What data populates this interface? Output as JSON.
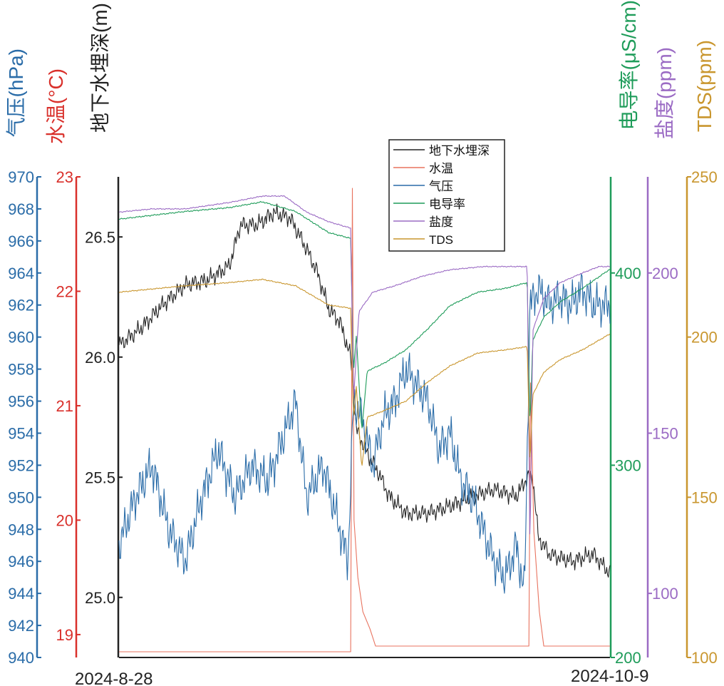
{
  "chart_data": {
    "type": "line",
    "x_start_label": "2024-8-28",
    "x_end_label": "2024-10-9",
    "axes": [
      {
        "id": "pressure",
        "label": "气压(hPa)",
        "color": "#2a6ca8",
        "side": "left",
        "range": [
          940,
          970
        ],
        "ticks": [
          940,
          942,
          944,
          946,
          948,
          950,
          952,
          954,
          956,
          958,
          960,
          962,
          964,
          966,
          968,
          970
        ]
      },
      {
        "id": "temp",
        "label": "水温(°C)",
        "color": "#d9302b",
        "side": "left",
        "range": [
          18.8,
          23
        ],
        "ticks": [
          19,
          20,
          21,
          22,
          23
        ]
      },
      {
        "id": "depth",
        "label": "地下水埋深(m)",
        "color": "#222222",
        "side": "left",
        "range": [
          24.75,
          26.75
        ],
        "ticks": [
          "25.0",
          "25.5",
          "26.0",
          "26.5"
        ]
      },
      {
        "id": "ec",
        "label": "电导率(μS/cm)",
        "color": "#1f9c5a",
        "side": "right",
        "range": [
          200,
          450
        ],
        "ticks": [
          200,
          300,
          400
        ]
      },
      {
        "id": "salinity",
        "label": "盐度(ppm)",
        "color": "#9b6bc4",
        "side": "right",
        "range": [
          80,
          230
        ],
        "ticks": [
          100,
          150,
          200
        ]
      },
      {
        "id": "tds",
        "label": "TDS(ppm)",
        "color": "#c9962e",
        "side": "right",
        "range": [
          100,
          250
        ],
        "ticks": [
          100,
          150,
          200,
          250
        ]
      }
    ],
    "legend": {
      "placement": "top-center",
      "entries": [
        "地下水埋深",
        "水温",
        "气压",
        "电导率",
        "盐度",
        "TDS"
      ]
    },
    "series": [
      {
        "name": "地下水埋深",
        "axis": "depth",
        "color": "#222222",
        "values": [
          [
            0,
            26.05
          ],
          [
            4,
            26.12
          ],
          [
            8,
            26.22
          ],
          [
            12,
            26.3
          ],
          [
            16,
            26.32
          ],
          [
            20,
            26.38
          ],
          [
            22,
            26.55
          ],
          [
            25,
            26.55
          ],
          [
            28,
            26.6
          ],
          [
            31,
            26.58
          ],
          [
            34,
            26.45
          ],
          [
            36,
            26.35
          ],
          [
            38,
            26.2
          ],
          [
            40,
            26.15
          ],
          [
            42,
            26.0
          ],
          [
            43,
            25.7
          ],
          [
            45,
            25.6
          ],
          [
            47,
            25.52
          ],
          [
            49,
            25.42
          ],
          [
            52,
            25.35
          ],
          [
            56,
            25.35
          ],
          [
            60,
            25.38
          ],
          [
            64,
            25.42
          ],
          [
            68,
            25.45
          ],
          [
            72,
            25.42
          ],
          [
            74,
            25.5
          ],
          [
            75,
            25.5
          ],
          [
            76,
            25.25
          ],
          [
            78,
            25.18
          ],
          [
            82,
            25.15
          ],
          [
            86,
            25.18
          ],
          [
            89,
            25.1
          ]
        ]
      },
      {
        "name": "水温",
        "axis": "temp",
        "color": "#e8735f",
        "values": [
          [
            0,
            18.85
          ],
          [
            42,
            18.85
          ],
          [
            42.3,
            22.9
          ],
          [
            42.6,
            20.0
          ],
          [
            43.3,
            19.5
          ],
          [
            44.2,
            19.2
          ],
          [
            45.5,
            19.05
          ],
          [
            46.5,
            18.9
          ],
          [
            74.3,
            18.9
          ],
          [
            74.6,
            21.2
          ],
          [
            75.2,
            19.9
          ],
          [
            76.2,
            19.2
          ],
          [
            77,
            18.9
          ],
          [
            89,
            18.9
          ]
        ]
      },
      {
        "name": "气压",
        "axis": "pressure",
        "color": "#2a6ca8",
        "values": [
          [
            0,
            947
          ],
          [
            3,
            950
          ],
          [
            6,
            952
          ],
          [
            9,
            948
          ],
          [
            12,
            946
          ],
          [
            15,
            950
          ],
          [
            18,
            953
          ],
          [
            21,
            950
          ],
          [
            24,
            952
          ],
          [
            27,
            951
          ],
          [
            30,
            954
          ],
          [
            32,
            956
          ],
          [
            34,
            950
          ],
          [
            37,
            952
          ],
          [
            40,
            948
          ],
          [
            41.5,
            946
          ],
          [
            42.5,
            956
          ],
          [
            44,
            955
          ],
          [
            46,
            952
          ],
          [
            48,
            955
          ],
          [
            50,
            956
          ],
          [
            52,
            958
          ],
          [
            54,
            957
          ],
          [
            56,
            956
          ],
          [
            58,
            953
          ],
          [
            60,
            954
          ],
          [
            62,
            951
          ],
          [
            64,
            950
          ],
          [
            66,
            948
          ],
          [
            68,
            946
          ],
          [
            70,
            945
          ],
          [
            72,
            947
          ],
          [
            73.5,
            944
          ],
          [
            74.5,
            962
          ],
          [
            76,
            963
          ],
          [
            78,
            962
          ],
          [
            80,
            962.5
          ],
          [
            82,
            962
          ],
          [
            84,
            963
          ],
          [
            86,
            962
          ],
          [
            89,
            962
          ]
        ]
      },
      {
        "name": "电导率",
        "axis": "ec",
        "color": "#1f9c5a",
        "values": [
          [
            0,
            428
          ],
          [
            6,
            430
          ],
          [
            12,
            432
          ],
          [
            20,
            434
          ],
          [
            26,
            437
          ],
          [
            32,
            432
          ],
          [
            38,
            421
          ],
          [
            42,
            418
          ],
          [
            42.5,
            348
          ],
          [
            43,
            368
          ],
          [
            44,
            318
          ],
          [
            45,
            349
          ],
          [
            48,
            353
          ],
          [
            52,
            360
          ],
          [
            56,
            371
          ],
          [
            60,
            383
          ],
          [
            65,
            390
          ],
          [
            70,
            392
          ],
          [
            74,
            395
          ],
          [
            74.5,
            320
          ],
          [
            75,
            365
          ],
          [
            77,
            377
          ],
          [
            80,
            385
          ],
          [
            84,
            392
          ],
          [
            87,
            398
          ],
          [
            89,
            402
          ]
        ]
      },
      {
        "name": "盐度",
        "axis": "salinity",
        "color": "#9b6bc4",
        "values": [
          [
            0,
            219
          ],
          [
            6,
            220
          ],
          [
            12,
            220
          ],
          [
            20,
            222
          ],
          [
            26,
            224
          ],
          [
            30,
            224
          ],
          [
            34,
            219
          ],
          [
            38,
            216
          ],
          [
            42,
            214
          ],
          [
            42.5,
            160
          ],
          [
            43.5,
            188
          ],
          [
            46,
            194
          ],
          [
            50,
            196
          ],
          [
            55,
            199
          ],
          [
            60,
            201
          ],
          [
            66,
            202
          ],
          [
            70,
            202
          ],
          [
            74,
            202
          ],
          [
            74.5,
            112
          ],
          [
            75,
            182
          ],
          [
            77,
            192
          ],
          [
            80,
            197
          ],
          [
            84,
            200
          ],
          [
            87,
            202
          ],
          [
            89,
            202
          ]
        ]
      },
      {
        "name": "TDS",
        "axis": "tds",
        "color": "#c9962e",
        "values": [
          [
            0,
            214
          ],
          [
            6,
            215
          ],
          [
            12,
            216
          ],
          [
            20,
            217
          ],
          [
            26,
            218
          ],
          [
            32,
            216
          ],
          [
            38,
            210
          ],
          [
            42,
            209
          ],
          [
            42.5,
            174
          ],
          [
            43,
            185
          ],
          [
            44,
            159
          ],
          [
            45,
            175
          ],
          [
            48,
            177
          ],
          [
            52,
            180
          ],
          [
            56,
            186
          ],
          [
            60,
            191
          ],
          [
            65,
            195
          ],
          [
            70,
            196
          ],
          [
            74,
            197
          ],
          [
            74.5,
            160
          ],
          [
            75,
            182
          ],
          [
            77,
            189
          ],
          [
            80,
            193
          ],
          [
            84,
            196
          ],
          [
            87,
            199
          ],
          [
            89,
            201
          ]
        ]
      }
    ]
  }
}
